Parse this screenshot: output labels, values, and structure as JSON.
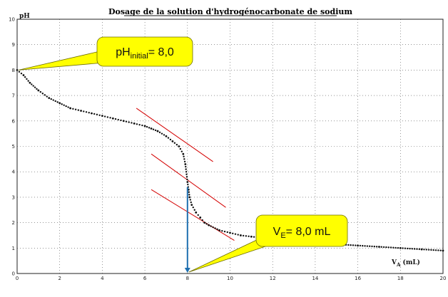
{
  "chart_data": {
    "type": "scatter",
    "title": "Dosage de la solution d'hydrogénocarbonate de sodium",
    "xlabel": "VA (mL)",
    "xlabel_main": "V",
    "xlabel_sub": "A",
    "xlabel_unit": " (mL)",
    "ylabel": "pH",
    "xlim": [
      0,
      20
    ],
    "ylim": [
      0,
      10
    ],
    "x_ticks": [
      "0",
      "2",
      "4",
      "6",
      "8",
      "10",
      "12",
      "14",
      "16",
      "18",
      "20"
    ],
    "y_ticks": [
      "0",
      "1",
      "2",
      "3",
      "4",
      "5",
      "6",
      "7",
      "8",
      "9",
      "10"
    ],
    "grid": true,
    "series": [
      {
        "color": "#111111",
        "x": [
          0,
          0.3,
          0.6,
          1,
          1.5,
          2,
          2.5,
          3,
          3.5,
          4,
          4.5,
          5,
          5.5,
          6,
          6.3,
          6.6,
          7,
          7.3,
          7.6,
          7.8,
          7.9,
          8.0,
          8.05,
          8.1,
          8.2,
          8.4,
          8.6,
          8.8,
          9,
          9.5,
          10,
          10.5,
          11,
          11.5,
          12,
          13,
          14,
          15,
          16,
          17,
          18,
          19,
          20
        ],
        "y": [
          8.0,
          7.8,
          7.5,
          7.2,
          6.9,
          6.7,
          6.5,
          6.4,
          6.3,
          6.2,
          6.1,
          6.0,
          5.9,
          5.8,
          5.7,
          5.6,
          5.4,
          5.2,
          5.0,
          4.7,
          4.3,
          3.6,
          3.3,
          3.0,
          2.7,
          2.4,
          2.2,
          2.0,
          1.9,
          1.7,
          1.6,
          1.5,
          1.45,
          1.4,
          1.35,
          1.3,
          1.2,
          1.15,
          1.1,
          1.05,
          1.0,
          0.95,
          0.9
        ]
      }
    ],
    "tangent_color": "#d40000",
    "tangents": [
      {
        "x1": 5.6,
        "y1": 6.5,
        "x2": 9.2,
        "y2": 4.4
      },
      {
        "x1": 6.3,
        "y1": 4.7,
        "x2": 9.8,
        "y2": 2.6
      },
      {
        "x1": 6.3,
        "y1": 3.3,
        "x2": 10.2,
        "y2": 1.3
      }
    ],
    "equivalence_line": {
      "x": 8.0,
      "y_top": 3.4,
      "color": "#1e6fb0"
    },
    "annotations": {
      "ph_initial": {
        "main": "pH",
        "sub": "initial",
        "value": "= 8,0",
        "anchor_x": 0.0,
        "anchor_y": 8.0
      },
      "ve": {
        "main": "V",
        "sub": "E",
        "value": "= 8,0 mL",
        "anchor_x": 8.0,
        "anchor_y": 0.0
      },
      "fill": "#ffff00",
      "stroke": "#6b6b00"
    }
  }
}
